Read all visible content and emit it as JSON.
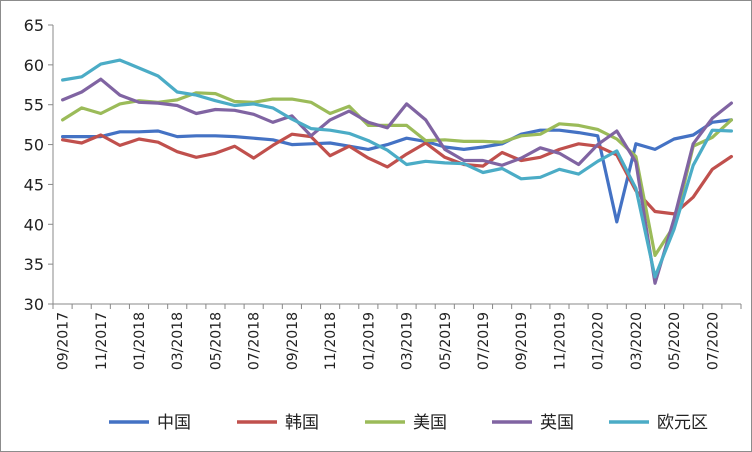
{
  "chart_data": {
    "type": "line",
    "title": "",
    "xlabel": "",
    "ylabel": "",
    "ylim": [
      30,
      65
    ],
    "yticks": [
      30,
      35,
      40,
      45,
      50,
      55,
      60,
      65
    ],
    "grid": false,
    "legend_position": "bottom",
    "x": [
      "09/2017",
      "10/2017",
      "11/2017",
      "12/2017",
      "01/2018",
      "02/2018",
      "03/2018",
      "04/2018",
      "05/2018",
      "06/2018",
      "07/2018",
      "08/2018",
      "09/2018",
      "10/2018",
      "11/2018",
      "12/2018",
      "01/2019",
      "02/2019",
      "03/2019",
      "04/2019",
      "05/2019",
      "06/2019",
      "07/2019",
      "08/2019",
      "09/2019",
      "10/2019",
      "11/2019",
      "12/2019",
      "01/2020",
      "02/2020",
      "03/2020",
      "04/2020",
      "05/2020",
      "06/2020",
      "07/2020",
      "08/2020"
    ],
    "xtick_labels": [
      "09/2017",
      "11/2017",
      "01/2018",
      "03/2018",
      "05/2018",
      "07/2018",
      "09/2018",
      "11/2018",
      "01/2019",
      "03/2019",
      "05/2019",
      "07/2019",
      "09/2019",
      "11/2019",
      "01/2020",
      "03/2020",
      "05/2020",
      "07/2020"
    ],
    "series": [
      {
        "name": "中国",
        "color": "#4472c4",
        "values": [
          51.0,
          51.0,
          51.0,
          51.6,
          51.6,
          51.7,
          51.0,
          51.1,
          51.1,
          51.0,
          50.8,
          50.6,
          50.0,
          50.1,
          50.2,
          49.8,
          49.4,
          50.0,
          50.8,
          50.4,
          49.7,
          49.4,
          49.7,
          50.1,
          51.3,
          51.8,
          51.8,
          51.5,
          51.1,
          40.3,
          50.1,
          49.4,
          50.7,
          51.2,
          52.8,
          53.1
        ]
      },
      {
        "name": "韩国",
        "color": "#c0504d",
        "values": [
          50.6,
          50.2,
          51.2,
          49.9,
          50.7,
          50.3,
          49.1,
          48.4,
          48.9,
          49.8,
          48.3,
          49.9,
          51.3,
          51.0,
          48.6,
          49.8,
          48.3,
          47.2,
          48.8,
          50.2,
          48.4,
          47.5,
          47.3,
          49.0,
          48.0,
          48.4,
          49.4,
          50.1,
          49.8,
          48.7,
          44.2,
          41.6,
          41.3,
          43.4,
          46.9,
          48.5
        ]
      },
      {
        "name": "美国",
        "color": "#9bbb59",
        "values": [
          53.1,
          54.6,
          53.9,
          55.1,
          55.5,
          55.3,
          55.6,
          56.5,
          56.4,
          55.4,
          55.3,
          55.7,
          55.7,
          55.3,
          53.9,
          54.8,
          52.4,
          52.4,
          52.4,
          50.5,
          50.6,
          50.4,
          50.4,
          50.3,
          51.1,
          51.3,
          52.6,
          52.4,
          51.9,
          50.7,
          48.5,
          36.1,
          39.8,
          49.8,
          50.9,
          53.1
        ]
      },
      {
        "name": "英国",
        "color": "#8064a2",
        "values": [
          55.6,
          56.6,
          58.2,
          56.2,
          55.3,
          55.2,
          54.9,
          53.9,
          54.4,
          54.3,
          53.8,
          52.8,
          53.6,
          51.1,
          53.1,
          54.2,
          52.8,
          52.1,
          55.1,
          53.1,
          49.4,
          48.0,
          48.0,
          47.4,
          48.3,
          49.6,
          48.9,
          47.5,
          50.0,
          51.7,
          47.8,
          32.6,
          40.7,
          50.1,
          53.3,
          55.2
        ]
      },
      {
        "name": "欧元区",
        "color": "#4bacc6",
        "values": [
          58.1,
          58.5,
          60.1,
          60.6,
          59.6,
          58.6,
          56.6,
          56.2,
          55.5,
          54.9,
          55.1,
          54.6,
          53.2,
          52.0,
          51.8,
          51.4,
          50.5,
          49.3,
          47.5,
          47.9,
          47.7,
          47.6,
          46.5,
          47.0,
          45.7,
          45.9,
          46.9,
          46.3,
          47.9,
          49.2,
          44.5,
          33.4,
          39.4,
          47.4,
          51.8,
          51.7
        ]
      }
    ]
  }
}
